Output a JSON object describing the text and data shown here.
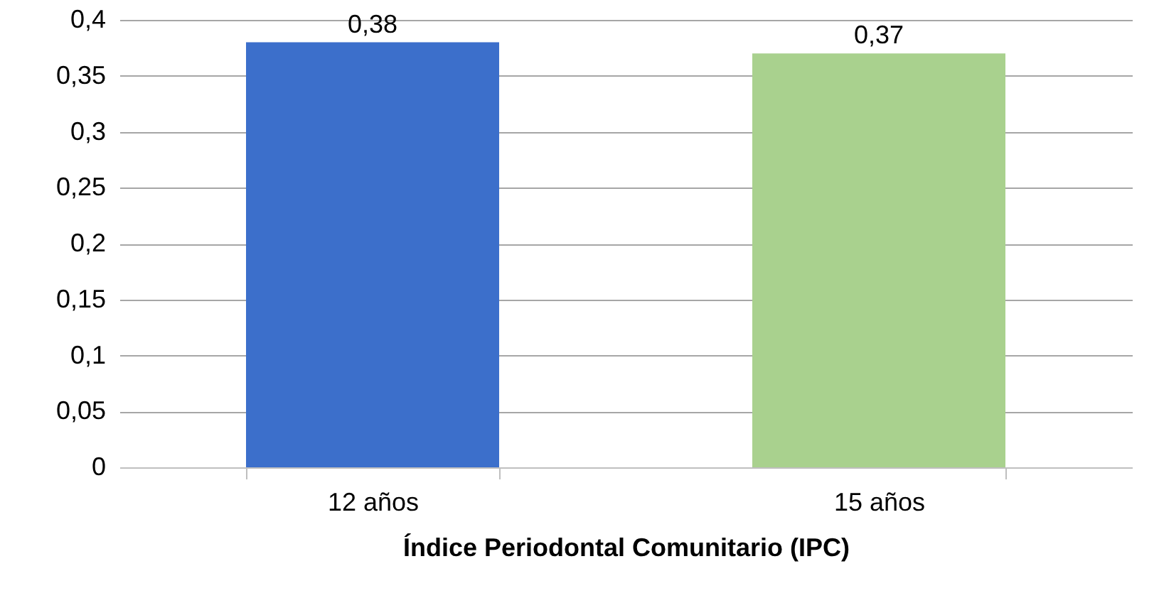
{
  "chart_data": {
    "type": "bar",
    "xlabel": "Índice Periodontal Comunitario (IPC)",
    "categories": [
      "12 años",
      "15 años"
    ],
    "values": [
      0.38,
      0.37
    ],
    "colors": [
      "#3c6fcb",
      "#a9d18e"
    ],
    "value_labels": [
      "0,38",
      "0,37"
    ],
    "ylim": [
      0,
      0.4
    ],
    "yticks": [
      0,
      {
        "value": 0.05,
        "label": "0,05"
      },
      {
        "value": 0.1,
        "label": "0,1"
      },
      {
        "value": 0.15,
        "label": "0,15"
      },
      {
        "value": 0.2,
        "label": "0,2"
      },
      {
        "value": 0.25,
        "label": "0,25"
      },
      {
        "value": 0.3,
        "label": "0,3"
      },
      {
        "value": 0.35,
        "label": "0,35"
      },
      {
        "value": 0.4,
        "label": "0,4"
      }
    ],
    "grid": "y",
    "legend": false
  }
}
